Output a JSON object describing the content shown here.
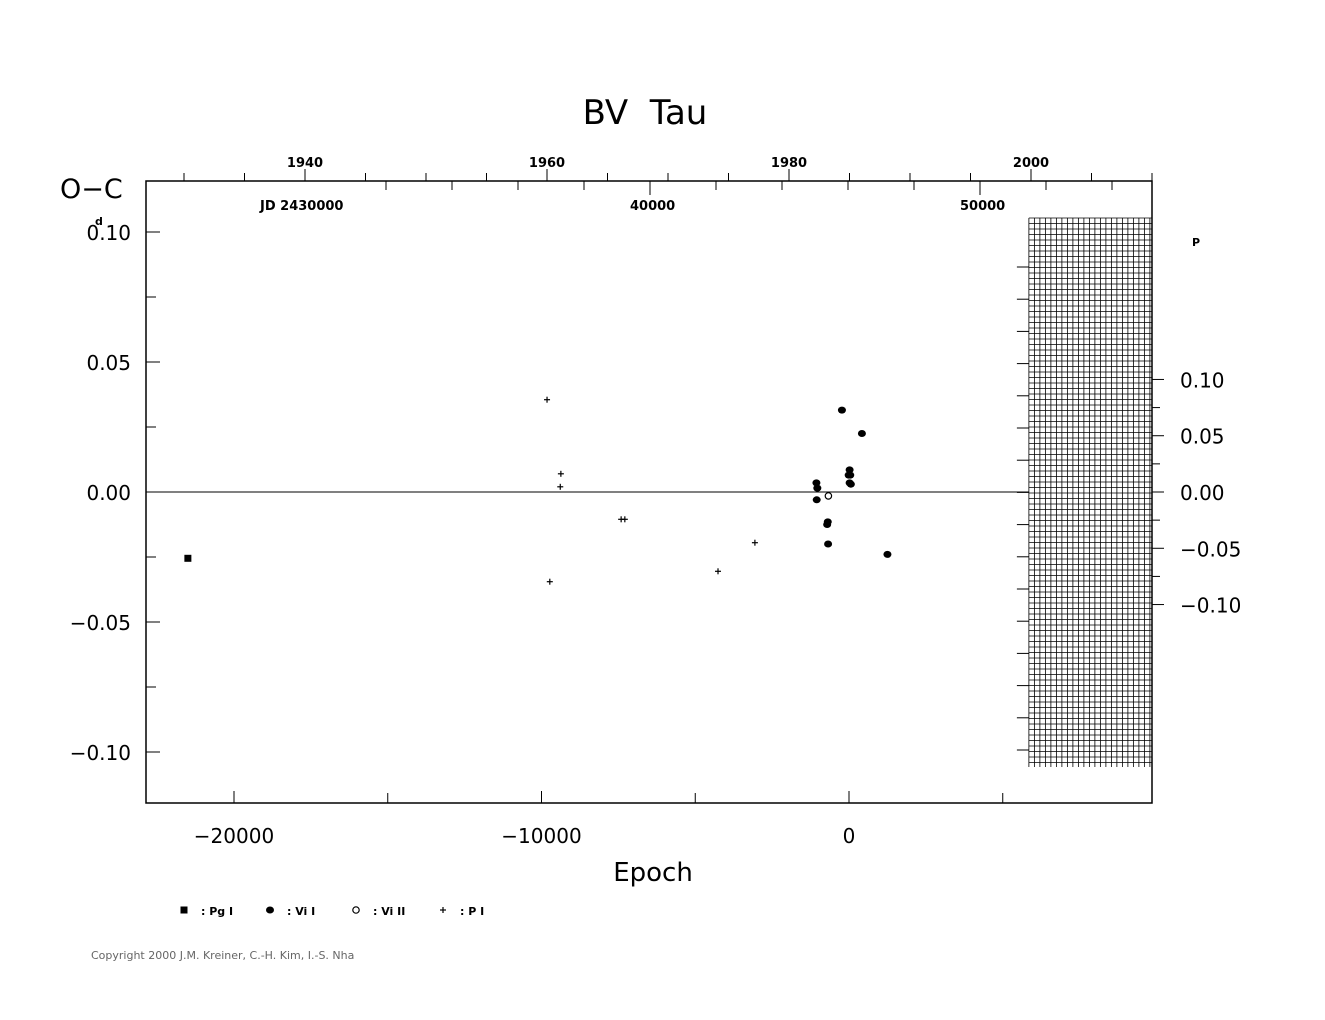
{
  "chart_data": {
    "type": "scatter",
    "title": "BV  Tau",
    "ylabel": "O−C",
    "ylabel_unit": "d",
    "right_unit": "P",
    "xlabel": "Epoch",
    "xlim": [
      -22800,
      9900
    ],
    "ylim": [
      -0.12,
      0.12
    ],
    "yticks_left": [
      {
        "v": 0.1,
        "label": "0.10"
      },
      {
        "v": 0.05,
        "label": "0.05"
      },
      {
        "v": 0.0,
        "label": "0.00"
      },
      {
        "v": -0.05,
        "label": "−0.05"
      },
      {
        "v": -0.1,
        "label": "−0.10"
      }
    ],
    "period_days": 0.4329,
    "yticks_right": [
      {
        "v": 0.1,
        "label": "0.10"
      },
      {
        "v": 0.05,
        "label": "0.05"
      },
      {
        "v": 0.0,
        "label": "0.00"
      },
      {
        "v": -0.05,
        "label": "−0.05"
      },
      {
        "v": -0.1,
        "label": "−0.10"
      }
    ],
    "xticks_bottom": [
      {
        "v": -20000,
        "label": "−20000"
      },
      {
        "v": -10000,
        "label": "−10000"
      },
      {
        "v": 0,
        "label": "0"
      }
    ],
    "years_top": [
      {
        "v": 1940,
        "label": "1940"
      },
      {
        "v": 1960,
        "label": "1960"
      },
      {
        "v": 1980,
        "label": "1980"
      },
      {
        "v": 2000,
        "label": "2000"
      }
    ],
    "jd_labels": [
      {
        "v": 40000,
        "label": "40000"
      },
      {
        "v": 50000,
        "label": "50000"
      }
    ],
    "jd_prefix": "JD 2430000",
    "future_region_start_epoch": 5850,
    "series": [
      {
        "name": ": Pg I",
        "marker": "square",
        "points": [
          [
            -21500,
            -0.0255
          ]
        ]
      },
      {
        "name": ": Vi I",
        "marker": "filled-circle",
        "points": [
          [
            -1060,
            0.0035
          ],
          [
            -1030,
            0.0015
          ],
          [
            -1050,
            -0.003
          ],
          [
            -690,
            -0.0115
          ],
          [
            -710,
            -0.0125
          ],
          [
            -680,
            -0.02
          ],
          [
            -230,
            0.0315
          ],
          [
            20,
            0.0085
          ],
          [
            -10,
            0.0065
          ],
          [
            40,
            0.0065
          ],
          [
            20,
            0.0035
          ],
          [
            60,
            0.003
          ],
          [
            420,
            0.0225
          ],
          [
            1250,
            -0.024
          ]
        ]
      },
      {
        "name": ": Vi II",
        "marker": "open-circle",
        "points": [
          [
            -670,
            -0.0015
          ]
        ]
      },
      {
        "name": ": P I",
        "marker": "plus",
        "points": [
          [
            -9820,
            0.0355
          ],
          [
            -9370,
            0.007
          ],
          [
            -9390,
            0.002
          ],
          [
            -9730,
            -0.0345
          ],
          [
            -7410,
            -0.0105
          ],
          [
            -7290,
            -0.0105
          ],
          [
            -4260,
            -0.0305
          ],
          [
            -3060,
            -0.0195
          ]
        ]
      }
    ]
  },
  "copyright": "Copyright 2000 J.M. Kreiner, C.-H. Kim, I.-S. Nha"
}
